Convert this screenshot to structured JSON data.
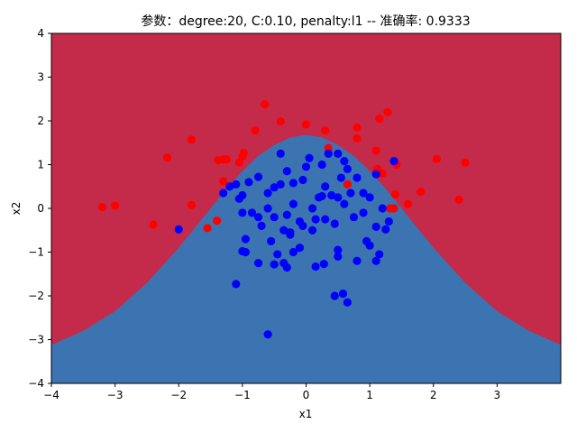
{
  "chart_data": {
    "type": "scatter",
    "title": "参数：degree:20, C:0.10, penalty:l1 -- 准确率: 0.9333",
    "xlabel": "x1",
    "ylabel": "x2",
    "xlim": [
      -4,
      4
    ],
    "ylim": [
      -4,
      4
    ],
    "xticks": [
      -4,
      -3,
      -2,
      -1,
      0,
      1,
      2,
      3
    ],
    "yticks": [
      -4,
      -3,
      -2,
      -1,
      0,
      1,
      2,
      3,
      4
    ],
    "grid": false,
    "colors": {
      "outer_region": "#c42a4a",
      "inner_region": "#3b74b1",
      "class_red": "#ff0000",
      "class_blue": "#0000ff"
    },
    "decision_boundary": [
      [
        -4.0,
        -3.12
      ],
      [
        -3.5,
        -2.8
      ],
      [
        -3.0,
        -2.35
      ],
      [
        -2.5,
        -1.7
      ],
      [
        -2.0,
        -0.9
      ],
      [
        -1.75,
        -0.45
      ],
      [
        -1.5,
        0.0
      ],
      [
        -1.25,
        0.45
      ],
      [
        -1.0,
        0.85
      ],
      [
        -0.75,
        1.2
      ],
      [
        -0.5,
        1.45
      ],
      [
        -0.25,
        1.62
      ],
      [
        0.0,
        1.68
      ],
      [
        0.25,
        1.62
      ],
      [
        0.5,
        1.45
      ],
      [
        0.75,
        1.2
      ],
      [
        1.0,
        0.85
      ],
      [
        1.25,
        0.45
      ],
      [
        1.5,
        0.0
      ],
      [
        1.75,
        -0.45
      ],
      [
        2.0,
        -0.9
      ],
      [
        2.5,
        -1.7
      ],
      [
        3.0,
        -2.35
      ],
      [
        3.5,
        -2.8
      ],
      [
        4.0,
        -3.12
      ]
    ],
    "series": [
      {
        "class": "red",
        "points": [
          [
            -0.65,
            2.38
          ],
          [
            -0.8,
            1.78
          ],
          [
            -0.4,
            1.99
          ],
          [
            0.0,
            1.92
          ],
          [
            0.3,
            1.78
          ],
          [
            0.8,
            1.85
          ],
          [
            1.15,
            2.05
          ],
          [
            1.28,
            2.2
          ],
          [
            0.8,
            1.6
          ],
          [
            -1.8,
            1.57
          ],
          [
            -2.18,
            1.16
          ],
          [
            -1.38,
            1.1
          ],
          [
            -1.3,
            1.12
          ],
          [
            -1.25,
            1.12
          ],
          [
            -1.05,
            1.05
          ],
          [
            -1.0,
            1.18
          ],
          [
            -0.98,
            1.27
          ],
          [
            0.35,
            1.38
          ],
          [
            0.65,
            0.55
          ],
          [
            1.1,
            1.32
          ],
          [
            1.42,
            1.0
          ],
          [
            1.12,
            0.88
          ],
          [
            1.2,
            0.8
          ],
          [
            2.05,
            1.13
          ],
          [
            2.5,
            1.05
          ],
          [
            1.8,
            0.38
          ],
          [
            2.4,
            0.2
          ],
          [
            1.6,
            0.1
          ],
          [
            1.32,
            0.0
          ],
          [
            1.4,
            0.32
          ],
          [
            1.38,
            0.0
          ],
          [
            -3.2,
            0.03
          ],
          [
            -3.0,
            0.06
          ],
          [
            -2.4,
            -0.37
          ],
          [
            -1.8,
            0.08
          ],
          [
            -1.4,
            -0.28
          ],
          [
            -1.55,
            -0.45
          ],
          [
            -1.3,
            0.62
          ],
          [
            1.12,
            0.9
          ]
        ]
      },
      {
        "class": "blue",
        "points": [
          [
            -0.6,
            -2.88
          ],
          [
            -1.1,
            -1.73
          ],
          [
            0.45,
            -2.0
          ],
          [
            0.58,
            -1.95
          ],
          [
            0.65,
            -2.15
          ],
          [
            0.15,
            -1.33
          ],
          [
            0.28,
            -1.27
          ],
          [
            -0.3,
            -1.35
          ],
          [
            -0.35,
            -1.25
          ],
          [
            -0.5,
            -1.28
          ],
          [
            -0.75,
            -1.25
          ],
          [
            -0.2,
            -1.0
          ],
          [
            -0.45,
            -1.05
          ],
          [
            -0.1,
            -0.9
          ],
          [
            0.5,
            -0.95
          ],
          [
            0.5,
            -1.1
          ],
          [
            0.8,
            -1.2
          ],
          [
            1.1,
            -1.2
          ],
          [
            1.15,
            -1.05
          ],
          [
            0.95,
            -0.75
          ],
          [
            1.0,
            -0.85
          ],
          [
            1.3,
            -0.3
          ],
          [
            1.1,
            -0.42
          ],
          [
            1.25,
            -0.48
          ],
          [
            -2.0,
            -0.48
          ],
          [
            -1.0,
            -0.98
          ],
          [
            -0.95,
            -0.7
          ],
          [
            -0.85,
            -0.1
          ],
          [
            -0.7,
            -0.4
          ],
          [
            -0.35,
            -0.5
          ],
          [
            -0.25,
            -0.6
          ],
          [
            -0.1,
            -0.3
          ],
          [
            -0.05,
            -0.4
          ],
          [
            0.1,
            -0.5
          ],
          [
            0.3,
            -0.25
          ],
          [
            0.45,
            -0.35
          ],
          [
            0.75,
            -0.2
          ],
          [
            0.9,
            -0.1
          ],
          [
            1.2,
            0.0
          ],
          [
            0.6,
            0.1
          ],
          [
            0.4,
            0.3
          ],
          [
            0.2,
            0.25
          ],
          [
            0.1,
            0.0
          ],
          [
            -0.2,
            0.1
          ],
          [
            -0.3,
            -0.15
          ],
          [
            -0.5,
            -0.2
          ],
          [
            -0.6,
            0.0
          ],
          [
            -0.75,
            -0.2
          ],
          [
            -1.0,
            -0.1
          ],
          [
            -1.05,
            0.22
          ],
          [
            -1.2,
            0.5
          ],
          [
            -1.3,
            0.35
          ],
          [
            -1.1,
            0.55
          ],
          [
            -0.9,
            0.6
          ],
          [
            -0.75,
            0.72
          ],
          [
            -0.6,
            0.35
          ],
          [
            -0.5,
            0.48
          ],
          [
            -0.4,
            0.55
          ],
          [
            -0.2,
            0.58
          ],
          [
            -0.05,
            0.65
          ],
          [
            0.0,
            0.95
          ],
          [
            0.05,
            1.15
          ],
          [
            0.25,
            1.0
          ],
          [
            0.35,
            1.25
          ],
          [
            0.5,
            1.25
          ],
          [
            0.6,
            1.08
          ],
          [
            0.65,
            0.9
          ],
          [
            0.8,
            0.7
          ],
          [
            0.9,
            0.35
          ],
          [
            1.0,
            0.25
          ],
          [
            1.1,
            0.78
          ],
          [
            1.38,
            1.08
          ],
          [
            0.25,
            0.28
          ],
          [
            -0.3,
            0.85
          ],
          [
            -0.4,
            1.25
          ],
          [
            -1.0,
            0.3
          ],
          [
            -0.95,
            -1.0
          ],
          [
            -0.55,
            -0.75
          ],
          [
            -0.25,
            -0.55
          ],
          [
            0.3,
            0.5
          ],
          [
            0.5,
            0.25
          ],
          [
            0.55,
            0.7
          ],
          [
            0.7,
            0.35
          ],
          [
            0.15,
            -0.25
          ]
        ]
      }
    ]
  }
}
